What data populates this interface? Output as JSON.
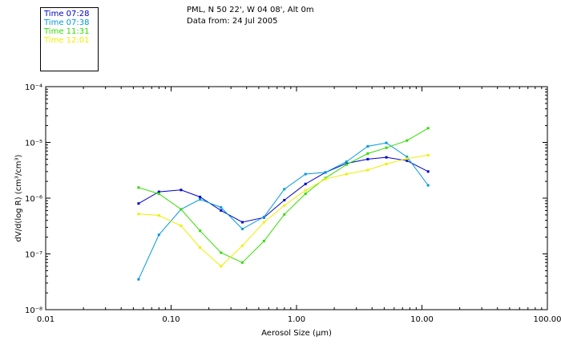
{
  "header": {
    "location": "PML, N 50 22', W 04 08', Alt 0m",
    "date": "Data from: 24 Jul 2005"
  },
  "colors": {
    "axis": "#000000",
    "background": "#ffffff"
  },
  "chart_data": {
    "type": "line",
    "title": "",
    "xlabel": "Aerosol Size (µm)",
    "ylabel": "dV/d(log R) (cm³/cm³)",
    "xscale": "log",
    "yscale": "log",
    "xlim": [
      0.01,
      100
    ],
    "ylim": [
      1e-08,
      0.0001
    ],
    "grid": false,
    "legend": "top-left",
    "x_ticks": [
      {
        "value": 0.01,
        "label": "0.01"
      },
      {
        "value": 0.1,
        "label": "0.10"
      },
      {
        "value": 1,
        "label": "1.00"
      },
      {
        "value": 10,
        "label": "10.00"
      },
      {
        "value": 100,
        "label": "100.00"
      }
    ],
    "y_ticks": [
      {
        "value": 1e-08,
        "label": "10⁻⁸"
      },
      {
        "value": 1e-07,
        "label": "10⁻⁷"
      },
      {
        "value": 1e-06,
        "label": "10⁻⁶"
      },
      {
        "value": 1e-05,
        "label": "10⁻⁵"
      },
      {
        "value": 0.0001,
        "label": "10⁻⁴"
      }
    ],
    "x": [
      0.055,
      0.08,
      0.12,
      0.17,
      0.25,
      0.37,
      0.55,
      0.8,
      1.18,
      1.7,
      2.5,
      3.7,
      5.2,
      7.6,
      11.2
    ],
    "series": [
      {
        "name": "Time 07:28",
        "color": "#0000cc",
        "values": [
          8e-07,
          1.3e-06,
          1.4e-06,
          1.05e-06,
          6e-07,
          3.7e-07,
          4.5e-07,
          9.2e-07,
          1.8e-06,
          2.9e-06,
          4.2e-06,
          5e-06,
          5.4e-06,
          4.7e-06,
          3e-06
        ]
      },
      {
        "name": "Time 07:38",
        "color": "#0099dd",
        "values": [
          3.5e-08,
          2.2e-07,
          6.3e-07,
          9.5e-07,
          6.8e-07,
          2.8e-07,
          4.6e-07,
          1.45e-06,
          2.7e-06,
          2.9e-06,
          4.5e-06,
          8.5e-06,
          9.8e-06,
          5.5e-06,
          1.7e-06
        ]
      },
      {
        "name": "Time 11:31",
        "color": "#33dd00",
        "values": [
          1.55e-06,
          1.2e-06,
          6.3e-07,
          2.6e-07,
          1.05e-07,
          7e-08,
          1.7e-07,
          5.1e-07,
          1.2e-06,
          2.3e-06,
          4e-06,
          6.3e-06,
          8e-06,
          1.08e-05,
          1.8e-05
        ]
      },
      {
        "name": "Time 12:01",
        "color": "#eeee00",
        "values": [
          5.2e-07,
          4.9e-07,
          3.2e-07,
          1.3e-07,
          6e-08,
          1.4e-07,
          3.7e-07,
          7.4e-07,
          1.38e-06,
          2.2e-06,
          2.7e-06,
          3.2e-06,
          4.1e-06,
          5.1e-06,
          5.9e-06
        ]
      }
    ]
  }
}
